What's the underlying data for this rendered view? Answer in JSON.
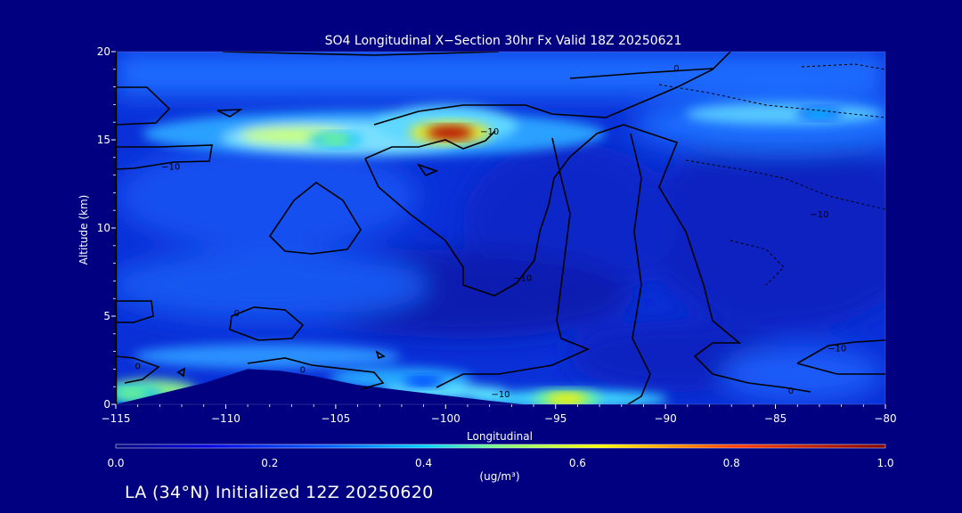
{
  "chart_data": {
    "type": "heatmap",
    "title": "SO4 Longitudinal X−Section 30hr  Fx Valid 18Z 20250621",
    "xlabel": "Longitudinal",
    "ylabel": "Altitude (km)",
    "xlim": [
      -115,
      -80
    ],
    "ylim": [
      0,
      20
    ],
    "x_ticks": [
      -115,
      -110,
      -105,
      -100,
      -95,
      -90,
      -85,
      -80
    ],
    "x_tick_labels": [
      "−115",
      "−110",
      "−105",
      "−100",
      "−95",
      "−90",
      "−85",
      "−80"
    ],
    "y_ticks": [
      0,
      5,
      10,
      15,
      20
    ],
    "colorbar": {
      "label": "(ug/m³)",
      "range": [
        0.0,
        1.0
      ],
      "ticks": [
        0.0,
        0.2,
        0.4,
        0.6,
        0.8,
        1.0
      ],
      "tick_labels": [
        "0.0",
        "0.2",
        "0.4",
        "0.6",
        "0.8",
        "1.0"
      ]
    },
    "colors": {
      "background": "#000080",
      "colormap": [
        "#00007f",
        "#0000d0",
        "#0050ff",
        "#00bfff",
        "#7fff7f",
        "#ffef00",
        "#ff5a00",
        "#b40000"
      ]
    },
    "contour_labels": [
      {
        "text": "−10",
        "lon": -112.5,
        "alt": 13.5
      },
      {
        "text": "−10",
        "lon": -98,
        "alt": 15.5
      },
      {
        "text": "−10",
        "lon": -96.5,
        "alt": 7.2
      },
      {
        "text": "−10",
        "lon": -83,
        "alt": 10.8
      },
      {
        "text": "−10",
        "lon": -82.2,
        "alt": 3.2
      },
      {
        "text": "−10",
        "lon": -97.5,
        "alt": 0.6
      },
      {
        "text": "0",
        "lon": -89.5,
        "alt": 19.1
      },
      {
        "text": "0",
        "lon": -109.5,
        "alt": 5.2
      },
      {
        "text": "0",
        "lon": -114,
        "alt": 2.2
      },
      {
        "text": "0",
        "lon": -106.5,
        "alt": 2.0
      },
      {
        "text": "0",
        "lon": -84.3,
        "alt": 0.8
      }
    ],
    "plumes": [
      {
        "lon": -99.8,
        "alt": 15.4,
        "value": 0.95
      },
      {
        "lon": -94.5,
        "alt": 0.3,
        "value": 0.72
      },
      {
        "lon": -114.3,
        "alt": 0.6,
        "value": 0.62
      },
      {
        "lon": -105,
        "alt": 15.0,
        "value": 0.5
      },
      {
        "lon": -83,
        "alt": 16.5,
        "value": 0.38
      },
      {
        "lon": -101,
        "alt": 1.3,
        "value": 0.35
      }
    ],
    "terrain": [
      {
        "lon": -113,
        "alt": 0.6
      },
      {
        "lon": -111,
        "alt": 1.2
      },
      {
        "lon": -109,
        "alt": 2.0
      },
      {
        "lon": -107.5,
        "alt": 1.9
      },
      {
        "lon": -106,
        "alt": 1.6
      },
      {
        "lon": -104,
        "alt": 1.1
      },
      {
        "lon": -102,
        "alt": 0.8
      },
      {
        "lon": -100,
        "alt": 0.5
      },
      {
        "lon": -98,
        "alt": 0.2
      },
      {
        "lon": -96.5,
        "alt": 0.0
      }
    ]
  },
  "footer": {
    "text": "LA (34°N) Initialized 12Z 20250620"
  }
}
